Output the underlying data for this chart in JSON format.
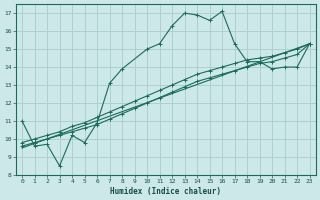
{
  "xlabel": "Humidex (Indice chaleur)",
  "background_color": "#cce8e8",
  "grid_color": "#aacccc",
  "line_color": "#1a6b5a",
  "xlim": [
    -0.5,
    23.5
  ],
  "ylim": [
    8,
    17.5
  ],
  "xticks": [
    0,
    1,
    2,
    3,
    4,
    5,
    6,
    7,
    8,
    9,
    10,
    11,
    12,
    13,
    14,
    15,
    16,
    17,
    18,
    19,
    20,
    21,
    22,
    23
  ],
  "yticks": [
    8,
    9,
    10,
    11,
    12,
    13,
    14,
    15,
    16,
    17
  ],
  "series": [
    {
      "x": [
        0,
        1,
        2,
        3,
        4,
        5,
        6,
        7,
        8,
        10,
        11,
        12,
        13,
        14,
        15,
        16,
        17,
        18,
        19,
        20,
        21,
        22,
        23
      ],
      "y": [
        11.0,
        9.6,
        9.7,
        8.5,
        10.2,
        9.8,
        10.9,
        13.1,
        13.9,
        15.0,
        15.3,
        16.3,
        17.0,
        16.9,
        16.6,
        17.1,
        15.3,
        14.3,
        14.3,
        13.9,
        14.0,
        14.0,
        15.3
      ]
    },
    {
      "x": [
        0,
        23
      ],
      "y": [
        9.5,
        15.3
      ]
    },
    {
      "x": [
        0,
        1,
        2,
        3,
        4,
        5,
        6,
        7,
        8,
        9,
        10,
        11,
        12,
        13,
        14,
        15,
        16,
        17,
        18,
        19,
        20,
        21,
        22,
        23
      ],
      "y": [
        9.6,
        9.8,
        10.0,
        10.2,
        10.4,
        10.6,
        10.8,
        11.1,
        11.4,
        11.7,
        12.0,
        12.3,
        12.6,
        12.9,
        13.2,
        13.4,
        13.6,
        13.8,
        14.0,
        14.2,
        14.3,
        14.5,
        14.7,
        15.3
      ]
    },
    {
      "x": [
        0,
        1,
        2,
        3,
        4,
        5,
        6,
        7,
        8,
        9,
        10,
        11,
        12,
        13,
        14,
        15,
        16,
        17,
        18,
        19,
        20,
        21,
        22,
        23
      ],
      "y": [
        9.8,
        10.0,
        10.2,
        10.4,
        10.7,
        10.9,
        11.2,
        11.5,
        11.8,
        12.1,
        12.4,
        12.7,
        13.0,
        13.3,
        13.6,
        13.8,
        14.0,
        14.2,
        14.4,
        14.5,
        14.6,
        14.8,
        15.0,
        15.3
      ]
    }
  ]
}
